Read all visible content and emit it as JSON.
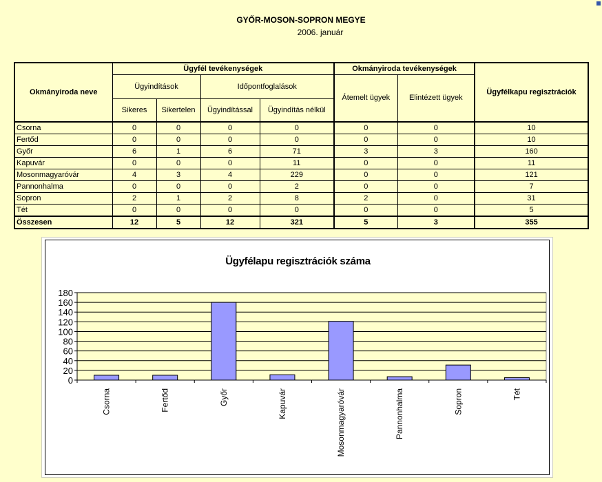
{
  "header": {
    "title": "GYŐR-MOSON-SOPRON MEGYE",
    "subtitle": "2006. január"
  },
  "table": {
    "col_name": "Okmányiroda neve",
    "group_client": "Ügyfél tevékenységek",
    "group_office": "Okmányiroda tevékenységek",
    "col_gateway": "Ügyfélkapu regisztrációk",
    "sub_initiations": "Ügyindítások",
    "sub_appointments": "Időpontfoglalások",
    "col_success": "Sikeres",
    "col_fail": "Sikertelen",
    "col_with": "Ügyindítással",
    "col_without": "Ügyindítás nélkül",
    "col_transferred": "Átemelt ügyek",
    "col_done": "Elintézett ügyek",
    "rows": [
      {
        "name": "Csorna",
        "v": [
          "0",
          "0",
          "0",
          "0",
          "0",
          "0",
          "10"
        ]
      },
      {
        "name": "Fertőd",
        "v": [
          "0",
          "0",
          "0",
          "0",
          "0",
          "0",
          "10"
        ]
      },
      {
        "name": "Győr",
        "v": [
          "6",
          "1",
          "6",
          "71",
          "3",
          "3",
          "160"
        ]
      },
      {
        "name": "Kapuvár",
        "v": [
          "0",
          "0",
          "0",
          "11",
          "0",
          "0",
          "11"
        ]
      },
      {
        "name": "Mosonmagyaróvár",
        "v": [
          "4",
          "3",
          "4",
          "229",
          "0",
          "0",
          "121"
        ]
      },
      {
        "name": "Pannonhalma",
        "v": [
          "0",
          "0",
          "0",
          "2",
          "0",
          "0",
          "7"
        ]
      },
      {
        "name": "Sopron",
        "v": [
          "2",
          "1",
          "2",
          "8",
          "2",
          "0",
          "31"
        ]
      },
      {
        "name": "Tét",
        "v": [
          "0",
          "0",
          "0",
          "0",
          "0",
          "0",
          "5"
        ]
      }
    ],
    "total": {
      "name": "Összesen",
      "v": [
        "12",
        "5",
        "12",
        "321",
        "5",
        "3",
        "355"
      ]
    }
  },
  "chart_data": {
    "type": "bar",
    "title": "Ügyfélapu regisztrációk száma",
    "categories": [
      "Csorna",
      "Fertőd",
      "Győr",
      "Kapuvár",
      "Mosonmagyaróvár",
      "Pannonhalma",
      "Sopron",
      "Tét"
    ],
    "values": [
      10,
      10,
      160,
      11,
      121,
      7,
      31,
      5
    ],
    "ylim": [
      0,
      180
    ],
    "yticks": [
      0,
      20,
      40,
      60,
      80,
      100,
      120,
      140,
      160,
      180
    ],
    "grid": true,
    "colors": {
      "bar": "#9999ff",
      "plot_bg": "#ffffcc"
    }
  }
}
